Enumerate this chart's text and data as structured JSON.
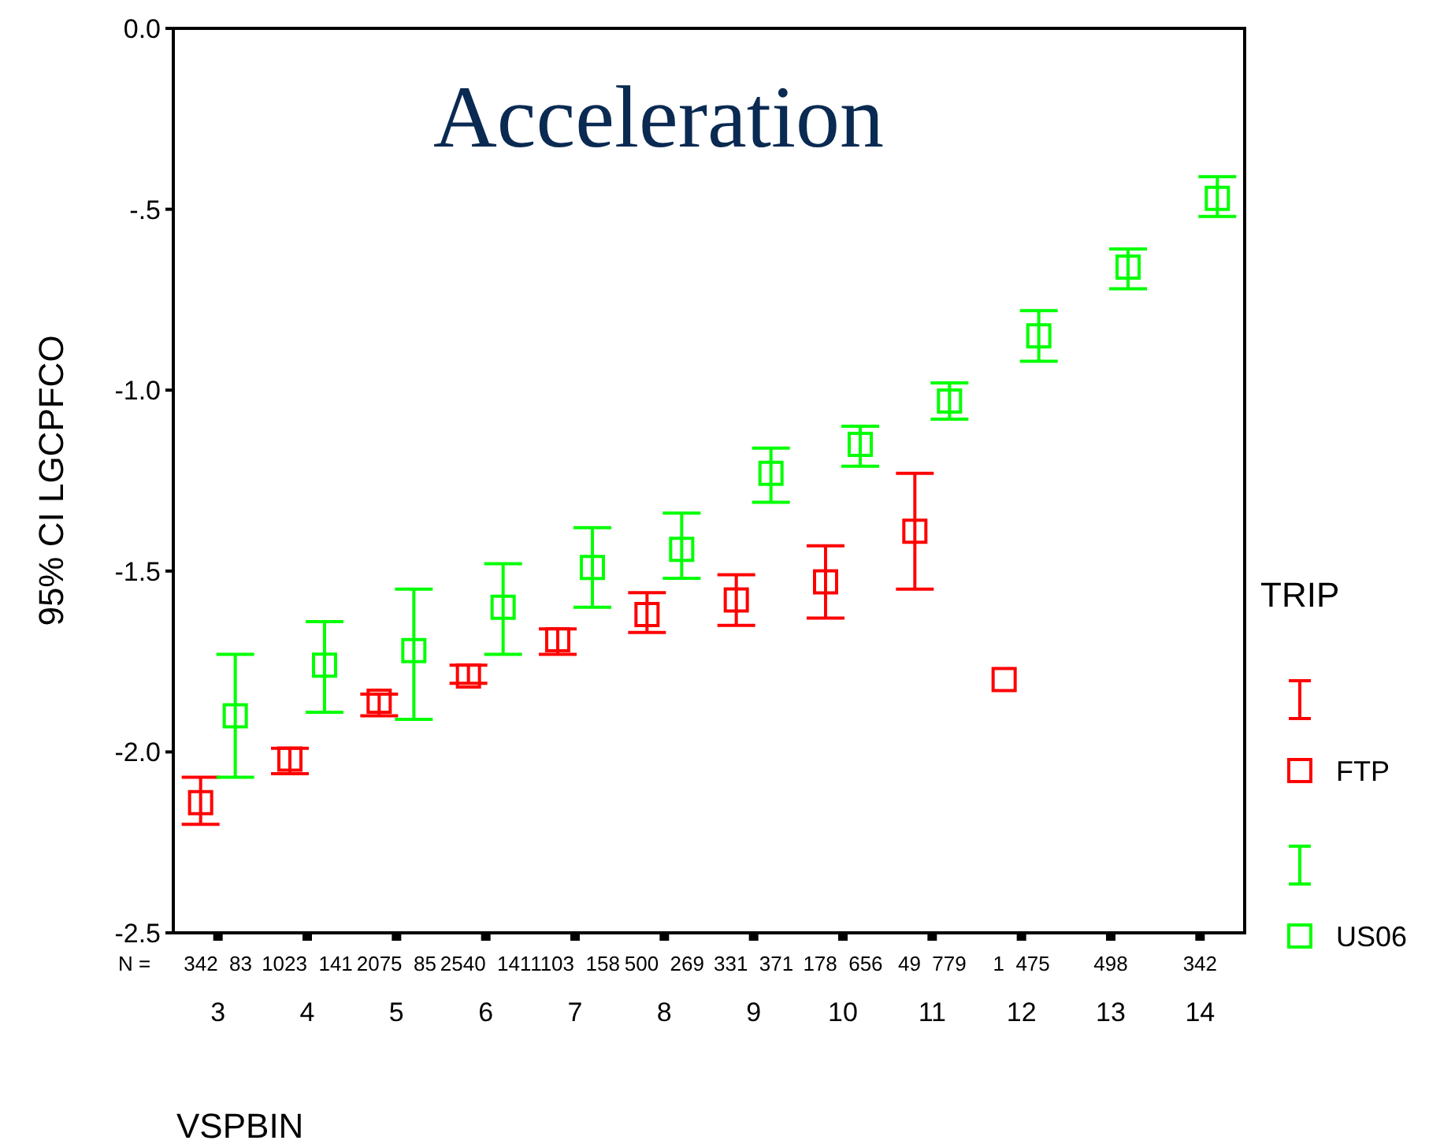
{
  "chart_data": {
    "type": "scatter",
    "title": "Acceleration",
    "xlabel": "VSPBIN",
    "ylabel": "95% CI LGCPFCO",
    "legend_title": "TRIP",
    "categories": [
      "3",
      "4",
      "5",
      "6",
      "7",
      "8",
      "9",
      "10",
      "11",
      "12",
      "13",
      "14"
    ],
    "series": [
      {
        "name": "FTP",
        "color": "#ff0000",
        "values": [
          -2.14,
          -2.02,
          -1.86,
          -1.79,
          -1.69,
          -1.62,
          -1.58,
          -1.53,
          -1.39,
          -1.8,
          null,
          null
        ],
        "errors": [
          [
            -2.2,
            -2.07
          ],
          [
            -2.06,
            -1.99
          ],
          [
            -1.9,
            -1.84
          ],
          [
            -1.81,
            -1.76
          ],
          [
            -1.73,
            -1.66
          ],
          [
            -1.67,
            -1.56
          ],
          [
            -1.65,
            -1.51
          ],
          [
            -1.63,
            -1.43
          ],
          [
            -1.55,
            -1.23
          ],
          null,
          null,
          null
        ]
      },
      {
        "name": "US06",
        "color": "#00ff00",
        "values": [
          -1.9,
          -1.76,
          -1.72,
          -1.6,
          -1.49,
          -1.44,
          -1.23,
          -1.15,
          -1.03,
          -0.85,
          -0.66,
          -0.47
        ],
        "errors": [
          [
            -2.07,
            -1.73
          ],
          [
            -1.89,
            -1.64
          ],
          [
            -1.91,
            -1.55
          ],
          [
            -1.73,
            -1.48
          ],
          [
            -1.6,
            -1.38
          ],
          [
            -1.52,
            -1.34
          ],
          [
            -1.31,
            -1.16
          ],
          [
            -1.21,
            -1.1
          ],
          [
            -1.08,
            -0.98
          ],
          [
            -0.92,
            -0.78
          ],
          [
            -0.72,
            -0.61
          ],
          [
            -0.52,
            -0.41
          ]
        ]
      }
    ],
    "ylim": [
      -2.5,
      0
    ],
    "yticks": [
      {
        "value": 0,
        "label": "0.0"
      },
      {
        "value": -0.5,
        "label": "-.5"
      },
      {
        "value": -1,
        "label": "-1.0"
      },
      {
        "value": -1.5,
        "label": "-1.5"
      },
      {
        "value": -2,
        "label": "-2.0"
      },
      {
        "value": -2.5,
        "label": "-2.5"
      }
    ],
    "marker": "square",
    "legend": "right",
    "grid": false,
    "annotations": [
      "N =",
      "342  83",
      "1023  141",
      "2075  85",
      "2540  141",
      "1103  158",
      "500  269",
      "331  371",
      "178  656",
      "49  779",
      "1  475",
      "498",
      "342"
    ]
  }
}
